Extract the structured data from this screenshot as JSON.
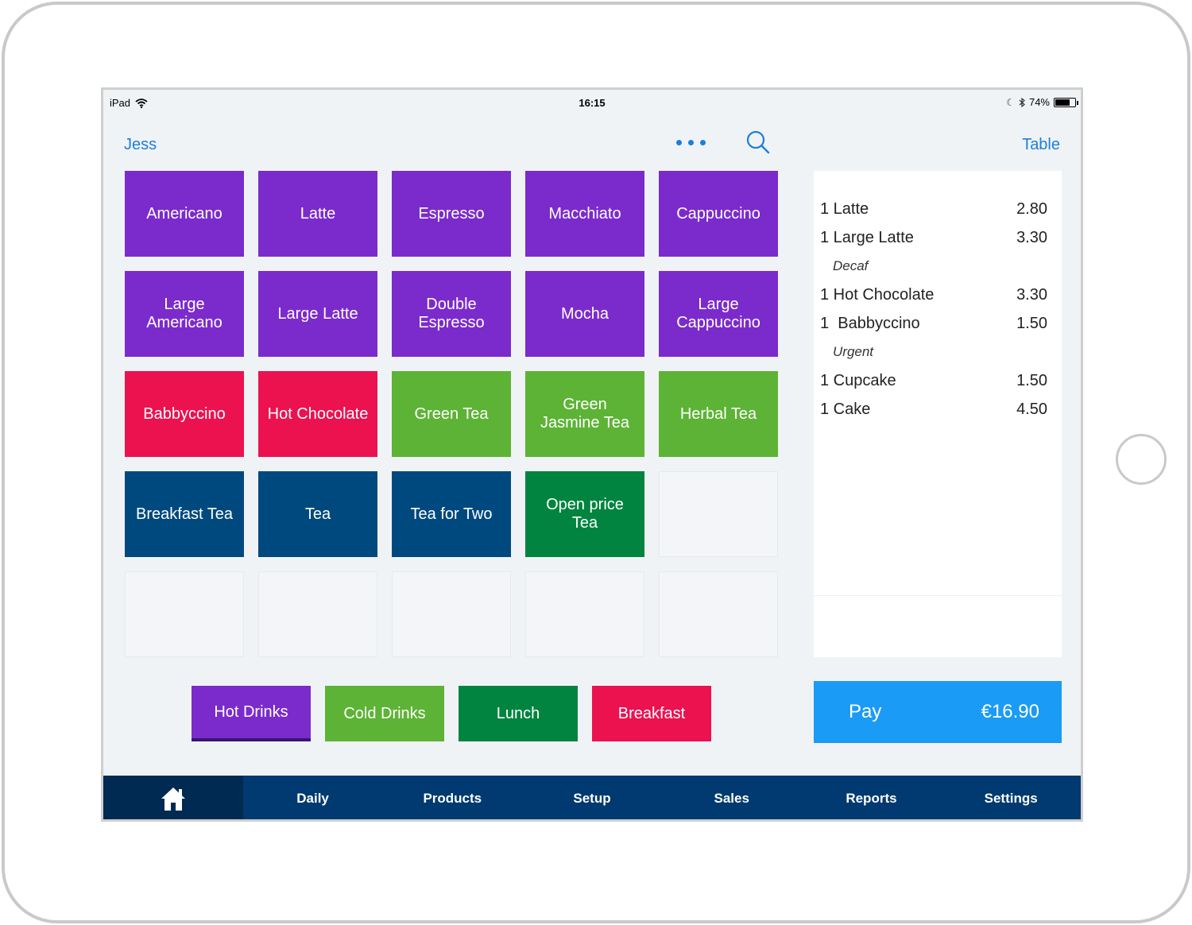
{
  "status_bar": {
    "device": "iPad",
    "time": "16:15",
    "battery": "74%",
    "battery_level": 0.74,
    "icons": [
      "wifi-icon",
      "moon-icon",
      "bluetooth-icon",
      "battery-icon"
    ]
  },
  "header": {
    "user": "Jess",
    "more_icon": "more-icon",
    "search_icon": "search-icon",
    "table_label": "Table"
  },
  "colors": {
    "purple": "#7b2bcc",
    "red": "#eb124f",
    "light_green": "#5db335",
    "navy": "#00497f",
    "dark_green": "#00843f",
    "pay_blue": "#1a9bf5",
    "nav_blue": "#003a70",
    "link_blue": "#1a7fdd"
  },
  "products": [
    {
      "label": "Americano",
      "color": "#7b2bcc"
    },
    {
      "label": "Latte",
      "color": "#7b2bcc"
    },
    {
      "label": "Espresso",
      "color": "#7b2bcc"
    },
    {
      "label": "Macchiato",
      "color": "#7b2bcc"
    },
    {
      "label": "Cappuccino",
      "color": "#7b2bcc"
    },
    {
      "label": "Large Americano",
      "color": "#7b2bcc"
    },
    {
      "label": "Large Latte",
      "color": "#7b2bcc"
    },
    {
      "label": "Double Espresso",
      "color": "#7b2bcc"
    },
    {
      "label": "Mocha",
      "color": "#7b2bcc"
    },
    {
      "label": "Large Cappuccino",
      "color": "#7b2bcc"
    },
    {
      "label": "Babbyccino",
      "color": "#eb124f"
    },
    {
      "label": "Hot Chocolate",
      "color": "#eb124f"
    },
    {
      "label": "Green Tea",
      "color": "#5db335"
    },
    {
      "label": "Green Jasmine Tea",
      "color": "#5db335"
    },
    {
      "label": "Herbal Tea",
      "color": "#5db335"
    },
    {
      "label": "Breakfast Tea",
      "color": "#00497f"
    },
    {
      "label": "Tea",
      "color": "#00497f"
    },
    {
      "label": "Tea for Two",
      "color": "#00497f"
    },
    {
      "label": "Open price Tea",
      "color": "#00843f"
    }
  ],
  "empty_slots": 6,
  "categories": [
    {
      "label": "Hot Drinks",
      "color": "#7b2bcc",
      "active": true
    },
    {
      "label": "Cold Drinks",
      "color": "#5db335",
      "active": false
    },
    {
      "label": "Lunch",
      "color": "#00843f",
      "active": false
    },
    {
      "label": "Breakfast",
      "color": "#eb124f",
      "active": false
    }
  ],
  "order": {
    "lines": [
      {
        "qty_name": "1 Latte",
        "price": "2.80",
        "note": ""
      },
      {
        "qty_name": "1 Large Latte",
        "price": "3.30",
        "note": "Decaf"
      },
      {
        "qty_name": "1 Hot Chocolate",
        "price": "3.30",
        "note": ""
      },
      {
        "qty_name": "1  Babbyccino",
        "price": "1.50",
        "note": "Urgent"
      },
      {
        "qty_name": "1 Cupcake",
        "price": "1.50",
        "note": ""
      },
      {
        "qty_name": "1 Cake",
        "price": "4.50",
        "note": ""
      }
    ]
  },
  "pay": {
    "label": "Pay",
    "total": "€16.90"
  },
  "nav": {
    "home_icon": "home-icon",
    "items": [
      "Daily",
      "Products",
      "Setup",
      "Sales",
      "Reports",
      "Settings"
    ]
  }
}
